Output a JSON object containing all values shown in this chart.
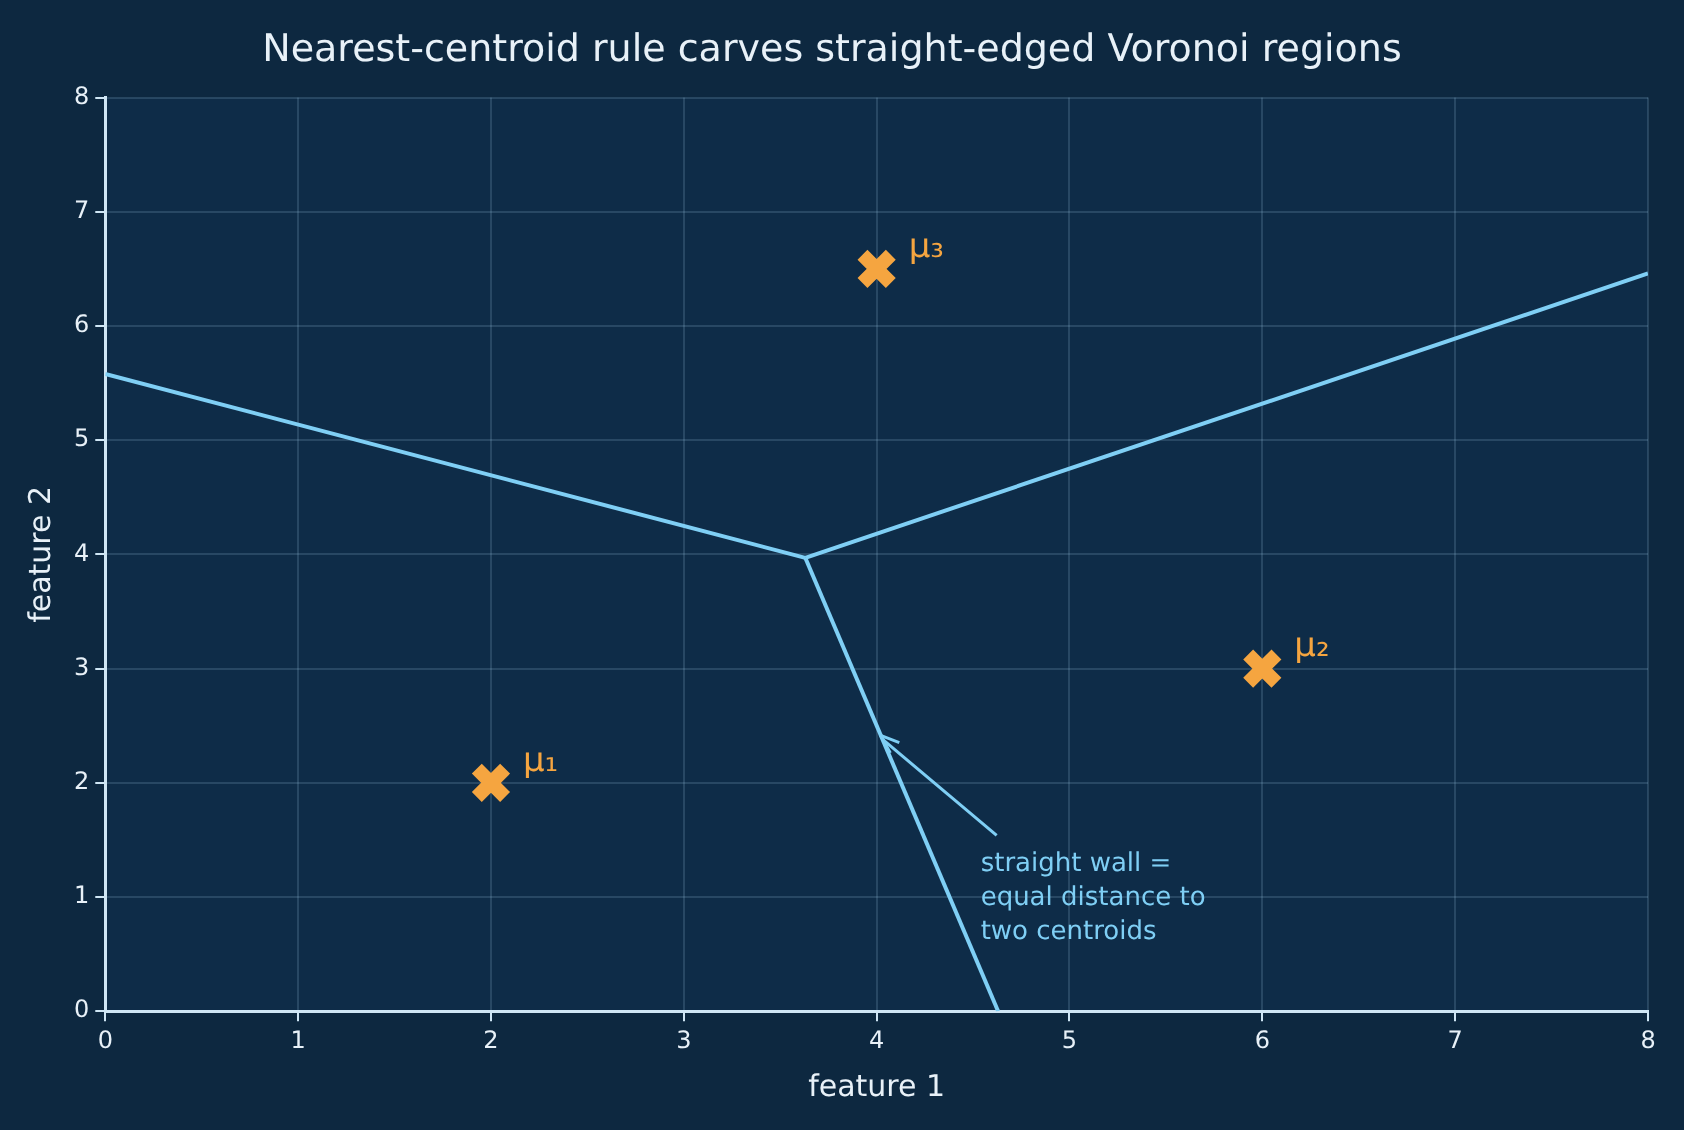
{
  "chart_data": {
    "type": "scatter",
    "title": "Nearest-centroid rule carves straight-edged Voronoi regions",
    "xlabel": "feature 1",
    "ylabel": "feature 2",
    "xlim": [
      0,
      8
    ],
    "ylim": [
      0,
      8
    ],
    "xticks": [
      0,
      1,
      2,
      3,
      4,
      5,
      6,
      7,
      8
    ],
    "yticks": [
      0,
      1,
      2,
      3,
      4,
      5,
      6,
      7,
      8
    ],
    "grid": true,
    "legend": false,
    "series": [
      {
        "type": "line",
        "color": "#7fcff5",
        "x": [
          0,
          3.63
        ],
        "values": [
          5.58,
          3.97
        ]
      },
      {
        "type": "line",
        "color": "#7fcff5",
        "x": [
          3.63,
          4.63
        ],
        "values": [
          3.97,
          0
        ]
      },
      {
        "type": "line",
        "color": "#7fcff5",
        "x": [
          3.63,
          8
        ],
        "values": [
          3.97,
          6.46
        ]
      },
      {
        "color": "#f5a540",
        "marker": "cross",
        "x": [
          2,
          6,
          4
        ],
        "values": [
          2,
          3,
          6.5
        ],
        "value_labels": [
          "μ₁",
          "μ₂",
          "μ₃"
        ]
      }
    ],
    "annotations": [
      {
        "text": "straight wall =\nequal distance to\ntwo centroids",
        "x": 4.0,
        "y": 2.45
      }
    ]
  }
}
